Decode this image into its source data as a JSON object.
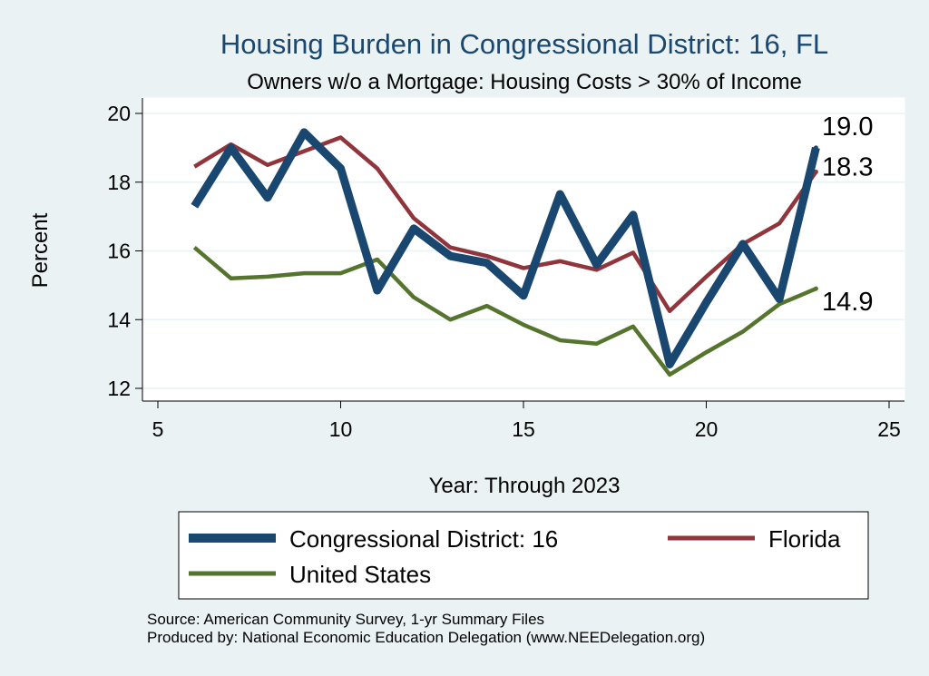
{
  "chart_data": {
    "type": "line",
    "title": "Housing Burden in Congressional District:  16, FL",
    "subtitle": "Owners w/o a Mortgage: Housing Costs > 30% of Income",
    "xlabel": "Year: Through 2023",
    "ylabel": "Percent",
    "xlim": [
      5,
      25
    ],
    "ylim": [
      12,
      20
    ],
    "xticks": [
      5,
      10,
      15,
      20,
      25
    ],
    "yticks": [
      12,
      14,
      16,
      18,
      20
    ],
    "grid": true,
    "x": [
      6,
      7,
      8,
      9,
      10,
      11,
      12,
      13,
      14,
      15,
      16,
      17,
      18,
      19,
      20,
      21,
      22,
      23
    ],
    "series": [
      {
        "name": "Congressional District:  16",
        "color": "#1a476f",
        "values": [
          17.3,
          19.0,
          17.55,
          19.45,
          18.4,
          14.85,
          16.65,
          15.85,
          15.65,
          14.7,
          17.65,
          15.6,
          17.05,
          12.7,
          14.5,
          16.2,
          14.6,
          19.0
        ],
        "end_label": "19.0"
      },
      {
        "name": "Florida",
        "color": "#90353b",
        "values": [
          18.45,
          19.1,
          18.5,
          18.9,
          19.3,
          18.4,
          16.95,
          16.1,
          15.85,
          15.5,
          15.7,
          15.45,
          15.95,
          14.25,
          15.25,
          16.2,
          16.8,
          18.3
        ],
        "end_label": "18.3"
      },
      {
        "name": "United States",
        "color": "#55752f",
        "values": [
          16.1,
          15.2,
          15.25,
          15.35,
          15.35,
          15.75,
          14.65,
          14.0,
          14.4,
          13.85,
          13.4,
          13.3,
          13.8,
          12.4,
          13.05,
          13.65,
          14.45,
          14.9
        ],
        "end_label": "14.9"
      }
    ],
    "legend": [
      "Congressional District:  16",
      "Florida",
      "United States"
    ],
    "legend_position": "bottom",
    "notes": [
      "Source: American Community Survey, 1-yr Summary Files",
      "Produced by: National Economic Education Delegation (www.NEEDelegation.org)"
    ]
  }
}
